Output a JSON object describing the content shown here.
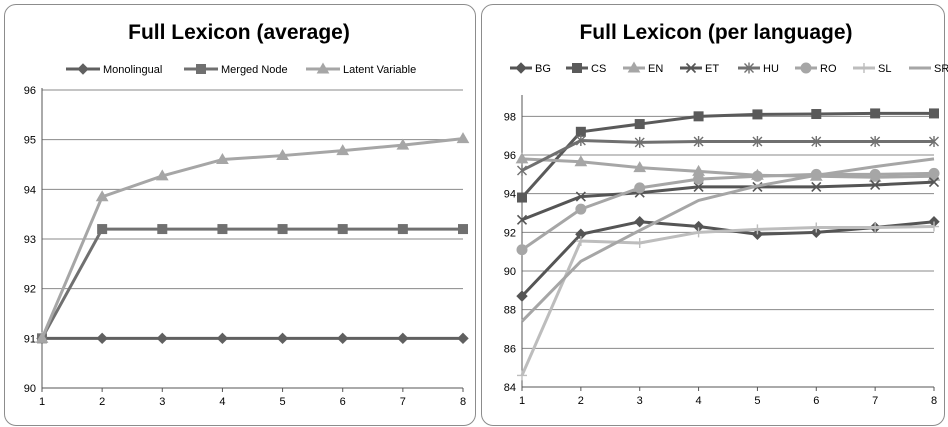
{
  "charts": [
    {
      "type": "line",
      "title": "Full Lexicon (average)",
      "x": [
        1,
        2,
        3,
        4,
        5,
        6,
        7,
        8
      ],
      "ylim": [
        90,
        96
      ],
      "yticks": [
        90,
        91,
        92,
        93,
        94,
        95,
        96
      ],
      "grid": true,
      "legend_position": "top",
      "series": [
        {
          "name": "Monolingual",
          "marker": "diamond",
          "color": "#606060",
          "values": [
            91.0,
            91.0,
            91.0,
            91.0,
            91.0,
            91.0,
            91.0,
            91.0
          ]
        },
        {
          "name": "Merged Node",
          "marker": "square",
          "color": "#707070",
          "values": [
            91.0,
            93.2,
            93.2,
            93.2,
            93.2,
            93.2,
            93.2,
            93.2
          ]
        },
        {
          "name": "Latent Variable",
          "marker": "triangle",
          "color": "#a6a6a6",
          "values": [
            91.0,
            93.85,
            94.27,
            94.6,
            94.68,
            94.78,
            94.89,
            95.02
          ]
        }
      ]
    },
    {
      "type": "line",
      "title": "Full Lexicon (per language)",
      "x": [
        1,
        2,
        3,
        4,
        5,
        6,
        7,
        8
      ],
      "ylim": [
        84,
        99
      ],
      "yticks": [
        84,
        86,
        88,
        90,
        92,
        94,
        96,
        98
      ],
      "grid": true,
      "legend_position": "top",
      "series": [
        {
          "name": "BG",
          "marker": "diamond",
          "color": "#555555",
          "values": [
            88.7,
            91.9,
            92.55,
            92.3,
            91.9,
            92.0,
            92.25,
            92.55
          ]
        },
        {
          "name": "CS",
          "marker": "square",
          "color": "#5a5a5a",
          "values": [
            93.8,
            97.2,
            97.6,
            98.0,
            98.1,
            98.12,
            98.15,
            98.15
          ]
        },
        {
          "name": "EN",
          "marker": "triangle",
          "color": "#a6a6a6",
          "values": [
            95.8,
            95.65,
            95.35,
            95.15,
            94.95,
            94.9,
            94.85,
            94.9
          ]
        },
        {
          "name": "ET",
          "marker": "x",
          "color": "#555555",
          "values": [
            92.65,
            93.85,
            94.05,
            94.35,
            94.35,
            94.35,
            94.45,
            94.6
          ]
        },
        {
          "name": "HU",
          "marker": "star",
          "color": "#707070",
          "values": [
            95.2,
            96.75,
            96.65,
            96.7,
            96.7,
            96.7,
            96.7,
            96.7
          ]
        },
        {
          "name": "RO",
          "marker": "circle",
          "color": "#a6a6a6",
          "values": [
            91.1,
            93.2,
            94.3,
            94.75,
            94.9,
            95.0,
            95.0,
            95.05
          ]
        },
        {
          "name": "SL",
          "marker": "plus",
          "color": "#bdbdbd",
          "values": [
            84.6,
            91.55,
            91.45,
            92.0,
            92.15,
            92.25,
            92.25,
            92.3
          ]
        },
        {
          "name": "SR",
          "marker": "none",
          "color": "#a6a6a6",
          "values": [
            87.4,
            90.5,
            92.1,
            93.65,
            94.4,
            94.95,
            95.4,
            95.8
          ]
        }
      ]
    }
  ]
}
